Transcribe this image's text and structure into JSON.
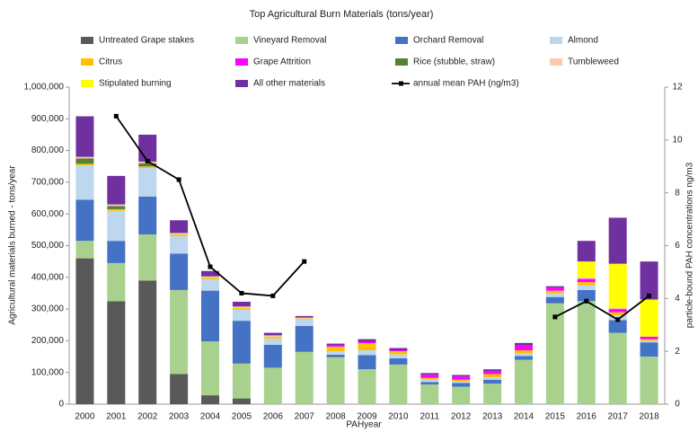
{
  "chart_data": {
    "type": "bar",
    "stacked": true,
    "title": "Top Agricultural Burn Materials (tons/year)",
    "x_label": "PAHyear",
    "y_label": "Agricultural materials burned - tons/year",
    "y2_label": "particle-bound PAH concentrations ng/m3",
    "categories": [
      "2000",
      "2001",
      "2002",
      "2003",
      "2004",
      "2005",
      "2006",
      "2007",
      "2008",
      "2009",
      "2010",
      "2011",
      "2012",
      "2013",
      "2014",
      "2015",
      "2016",
      "2017",
      "2018"
    ],
    "series": [
      {
        "name": "Untreated Grape stakes",
        "color": "#595959",
        "values": [
          460000,
          325000,
          390000,
          95000,
          28000,
          18000,
          0,
          0,
          0,
          0,
          0,
          0,
          0,
          0,
          0,
          0,
          0,
          0,
          0
        ]
      },
      {
        "name": "Vineyard Removal",
        "color": "#a9d18e",
        "values": [
          55000,
          120000,
          145000,
          265000,
          170000,
          110000,
          115000,
          165000,
          148000,
          110000,
          125000,
          62000,
          55000,
          65000,
          140000,
          318000,
          325000,
          225000,
          150000
        ]
      },
      {
        "name": "Orchard Removal",
        "color": "#4472c4",
        "values": [
          130000,
          70000,
          120000,
          115000,
          160000,
          135000,
          72000,
          82000,
          8000,
          45000,
          20000,
          8000,
          12000,
          12000,
          12000,
          20000,
          35000,
          40000,
          45000
        ]
      },
      {
        "name": "Almond",
        "color": "#bdd7ee",
        "values": [
          108000,
          95000,
          90000,
          55000,
          35000,
          35000,
          20000,
          20000,
          10000,
          15000,
          12000,
          8000,
          5000,
          8000,
          8000,
          12000,
          15000,
          15000,
          5000
        ]
      },
      {
        "name": "Citrus",
        "color": "#ffc000",
        "values": [
          5000,
          5000,
          5000,
          5000,
          5000,
          5000,
          5000,
          3000,
          15000,
          22000,
          10000,
          5000,
          5000,
          10000,
          10000,
          8000,
          10000,
          10000,
          5000
        ]
      },
      {
        "name": "Grape Attrition",
        "color": "#ff00ff",
        "values": [
          0,
          0,
          0,
          0,
          0,
          0,
          0,
          0,
          5000,
          5000,
          3000,
          10000,
          10000,
          10000,
          15000,
          10000,
          10000,
          10000,
          8000
        ]
      },
      {
        "name": "Rice (stubble, straw)",
        "color": "#548235",
        "values": [
          17000,
          10000,
          10000,
          0,
          0,
          0,
          0,
          0,
          0,
          0,
          0,
          0,
          0,
          0,
          0,
          0,
          0,
          0,
          0
        ]
      },
      {
        "name": "Tumbleweed",
        "color": "#f8cbad",
        "values": [
          5000,
          5000,
          5000,
          5000,
          5000,
          5000,
          5000,
          3000,
          0,
          0,
          0,
          0,
          0,
          0,
          0,
          0,
          5000,
          5000,
          0
        ]
      },
      {
        "name": "Stipulated burning",
        "color": "#ffff00",
        "values": [
          0,
          0,
          0,
          0,
          0,
          0,
          0,
          0,
          0,
          0,
          0,
          0,
          0,
          0,
          0,
          0,
          50000,
          138000,
          117000
        ]
      },
      {
        "name": "All other materials",
        "color": "#7030a0",
        "values": [
          128000,
          90000,
          85000,
          40000,
          17000,
          15000,
          8000,
          5000,
          5000,
          8000,
          7000,
          5000,
          5000,
          5000,
          8000,
          4000,
          65000,
          145000,
          120000
        ]
      },
      {
        "name": "annual mean PAH (ng/m3)",
        "color": "#000000",
        "type": "line",
        "axis": "y2",
        "values": [
          null,
          10.9,
          9.2,
          8.5,
          5.2,
          4.2,
          4.1,
          5.4,
          null,
          null,
          null,
          null,
          null,
          null,
          null,
          3.3,
          3.9,
          3.2,
          4.1
        ]
      }
    ],
    "ylim": [
      0,
      1000000
    ],
    "yticks": [
      0,
      {
        "value": 100000,
        "label": "100,000"
      },
      {
        "value": 200000,
        "label": "200,000"
      },
      {
        "value": 300000,
        "label": "300,000"
      },
      {
        "value": 400000,
        "label": "400,000"
      },
      {
        "value": 500000,
        "label": "500,000"
      },
      {
        "value": 600000,
        "label": "600,000"
      },
      {
        "value": 700000,
        "label": "700,000"
      },
      {
        "value": 800000,
        "label": "800,000"
      },
      {
        "value": 900000,
        "label": "900,000"
      },
      {
        "value": 1000000,
        "label": "1,000,000"
      }
    ],
    "y2lim": [
      0,
      12
    ],
    "y2ticks": [
      0,
      2,
      4,
      6,
      8,
      10,
      12
    ],
    "grid": false,
    "legend": "top"
  }
}
